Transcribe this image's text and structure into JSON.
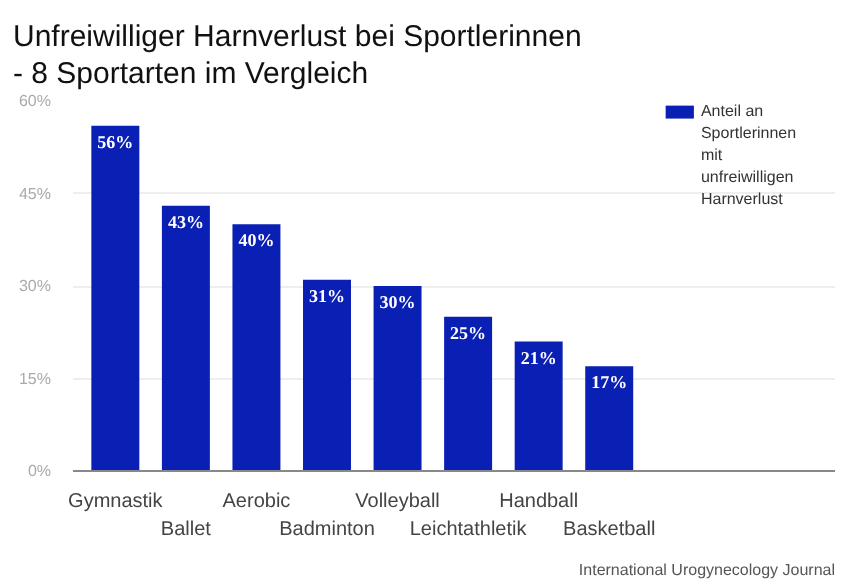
{
  "chart_data": {
    "type": "bar",
    "title": "Unfreiwilliger Harnverlust bei Sportlerinnen - 8 Sportarten im Vergleich",
    "categories": [
      "Gymnastik",
      "Ballet",
      "Aerobic",
      "Badminton",
      "Volleyball",
      "Leichtathletik",
      "Handball",
      "Basketball"
    ],
    "series": [
      {
        "name": "Anteil an Sportlerinnen mit unfreiwilligen Harnverlust",
        "color": "#0a1fb4",
        "values": [
          56,
          43,
          40,
          31,
          30,
          25,
          21,
          17
        ],
        "value_labels": [
          "56%",
          "43%",
          "40%",
          "31%",
          "30%",
          "25%",
          "21%",
          "17%"
        ]
      }
    ],
    "ylim": [
      0,
      60
    ],
    "yticks": [
      {
        "value": 0,
        "label": "0%"
      },
      {
        "value": 15,
        "label": "15%"
      },
      {
        "value": 30,
        "label": "30%"
      },
      {
        "value": 45,
        "label": "45%"
      },
      {
        "value": 60,
        "label": "60%"
      }
    ],
    "grid": "y",
    "legend": "top right",
    "annotations": [
      "International Urogynecology Journal"
    ]
  }
}
